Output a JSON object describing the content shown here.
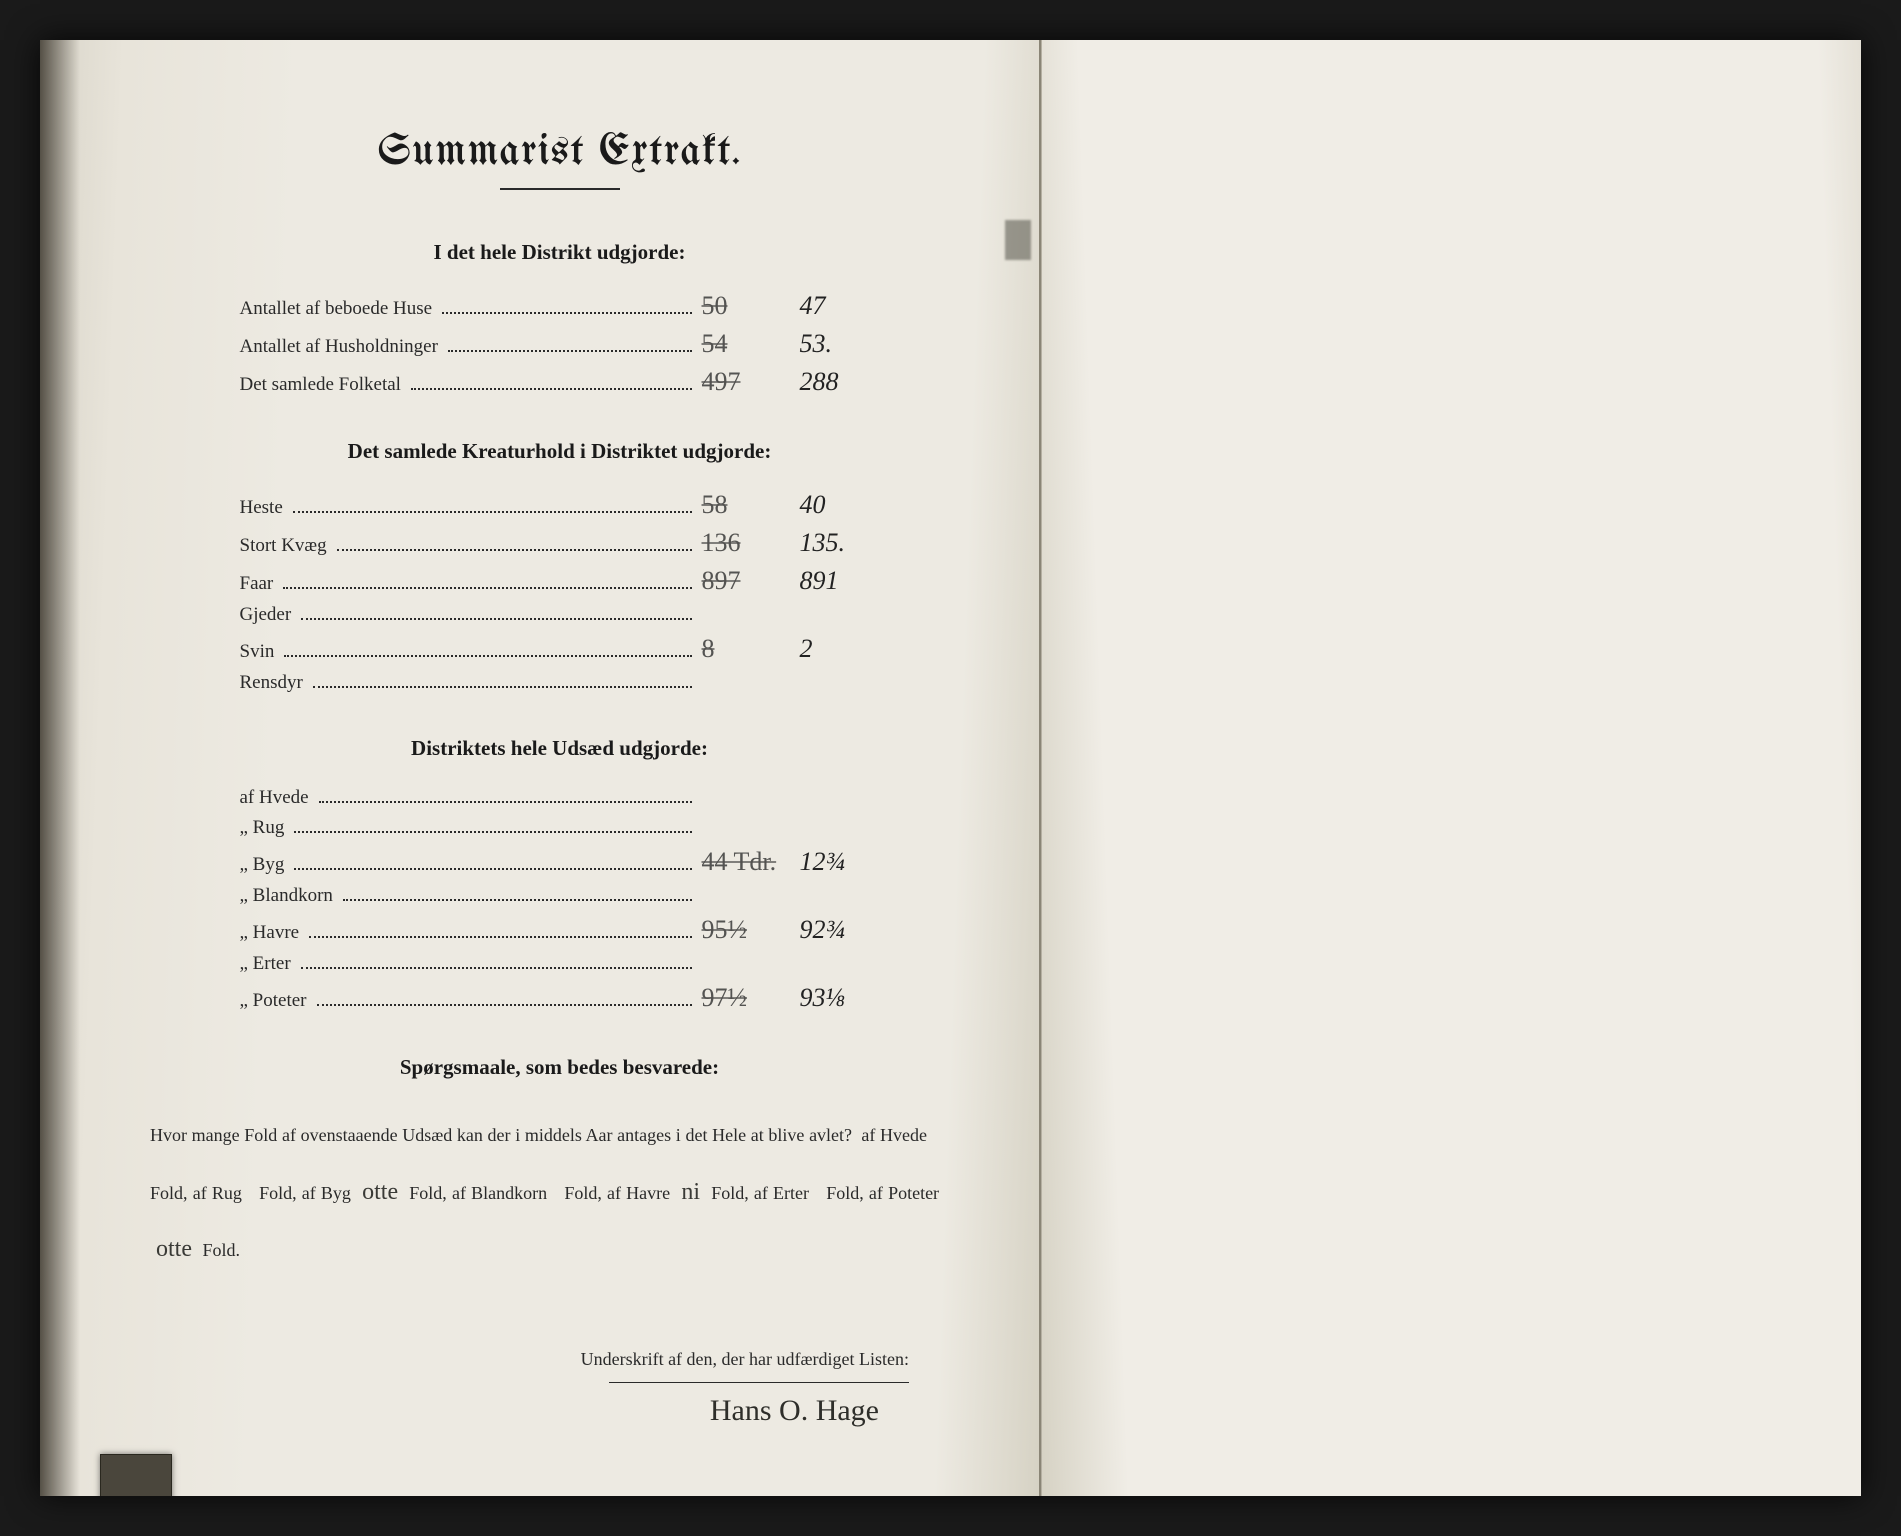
{
  "title": "Summarist Extrakt.",
  "section1": {
    "heading": "I det hele Distrikt udgjorde:",
    "rows": [
      {
        "label": "Antallet af beboede Huse",
        "struck": "50",
        "value": "47"
      },
      {
        "label": "Antallet af Husholdninger",
        "struck": "54",
        "value": "53."
      },
      {
        "label": "Det samlede Folketal",
        "struck": "497",
        "value": "288"
      }
    ]
  },
  "section2": {
    "heading": "Det samlede Kreaturhold i Distriktet udgjorde:",
    "rows": [
      {
        "label": "Heste",
        "struck": "58",
        "value": "40"
      },
      {
        "label": "Stort Kvæg",
        "struck": "136",
        "value": "135."
      },
      {
        "label": "Faar",
        "struck": "897",
        "value": "891"
      },
      {
        "label": "Gjeder",
        "struck": "",
        "value": ""
      },
      {
        "label": "Svin",
        "struck": "8",
        "value": "2"
      },
      {
        "label": "Rensdyr",
        "struck": "",
        "value": ""
      }
    ]
  },
  "section3": {
    "heading": "Distriktets hele Udsæd udgjorde:",
    "rows": [
      {
        "label": "af Hvede",
        "struck": "",
        "value": ""
      },
      {
        "label": "„ Rug",
        "struck": "",
        "value": ""
      },
      {
        "label": "„ Byg",
        "struck": "44 Tdr.",
        "value": "12¾"
      },
      {
        "label": "„ Blandkorn",
        "struck": "",
        "value": ""
      },
      {
        "label": "„ Havre",
        "struck": "95½",
        "value": "92¾"
      },
      {
        "label": "„ Erter",
        "struck": "",
        "value": ""
      },
      {
        "label": "„ Poteter",
        "struck": "97½",
        "value": "93⅛"
      }
    ]
  },
  "questions": {
    "heading": "Spørgsmaale, som bedes besvarede:",
    "lead": "Hvor mange Fold af ovenstaaende Udsæd kan der i middels Aar antages i det Hele at blive avlet?",
    "parts": {
      "hvede_label": "af Hvede",
      "hvede_val": "",
      "rug_label": "af Rug",
      "rug_val": "",
      "byg_label": "Fold, af Byg",
      "byg_val": "otte",
      "bland_label": "Fold, af Blandkorn",
      "bland_val": "",
      "havre_label": "Fold, af Havre",
      "havre_val": "ni",
      "erter_label": "Fold, af Erter",
      "erter_val": "",
      "poteter_label": "Fold,\naf Poteter",
      "poteter_val": "otte",
      "tail": "Fold."
    }
  },
  "signature": {
    "caption": "Underskrift af den, der har udfærdiget Listen:",
    "name": "Hans O. Hage"
  },
  "colors": {
    "paper_left": "#edeae2",
    "paper_right": "#f0ede6",
    "ink": "#2a2a2a",
    "handwriting": "#2e2e2a",
    "background": "#1a1a1a"
  },
  "typography": {
    "title_size_pt": 33,
    "section_head_size_pt": 16,
    "body_size_pt": 14,
    "handwriting_size_pt": 20
  }
}
